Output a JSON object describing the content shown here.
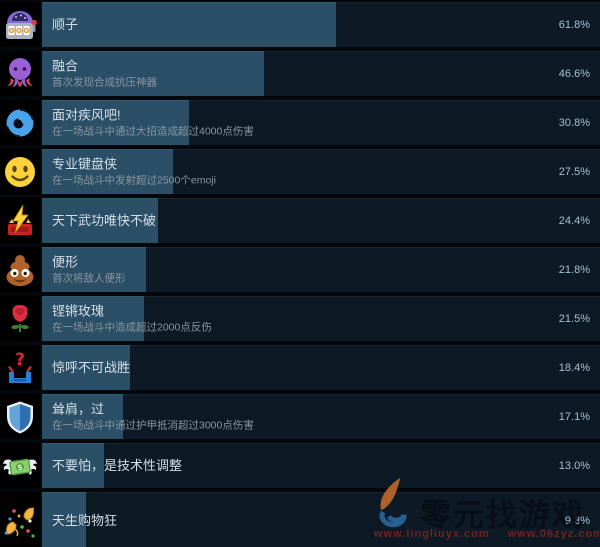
{
  "achievements": [
    {
      "title": "顺子",
      "description": "",
      "percent": 61.8,
      "percent_label": "61.8%",
      "icon": "slot-machine"
    },
    {
      "title": "融合",
      "description": "首次发现合成抗压神器",
      "percent": 46.6,
      "percent_label": "46.6%",
      "icon": "octopus"
    },
    {
      "title": "面对疾风吧!",
      "description": "在一场战斗中通过大招造成超过4000点伤害",
      "percent": 30.8,
      "percent_label": "30.8%",
      "icon": "cyclone"
    },
    {
      "title": "专业键盘侠",
      "description": "在一场战斗中发射超过2500个emoji",
      "percent": 27.5,
      "percent_label": "27.5%",
      "icon": "smiley"
    },
    {
      "title": "天下武功唯快不破",
      "description": "",
      "percent": 24.4,
      "percent_label": "24.4%",
      "icon": "zap"
    },
    {
      "title": "便形",
      "description": "首次将敌人便形",
      "percent": 21.8,
      "percent_label": "21.8%",
      "icon": "poop"
    },
    {
      "title": "铿锵玫瑰",
      "description": "在一场战斗中造成超过2000点反伤",
      "percent": 21.5,
      "percent_label": "21.5%",
      "icon": "rose"
    },
    {
      "title": "惊呼不可战胜",
      "description": "",
      "percent": 18.4,
      "percent_label": "18.4%",
      "icon": "question-box"
    },
    {
      "title": "耸肩，过",
      "description": "在一场战斗中通过护甲抵消超过3000点伤害",
      "percent": 17.1,
      "percent_label": "17.1%",
      "icon": "shield"
    },
    {
      "title": "不要怕，是技术性调整",
      "description": "",
      "percent": 13.0,
      "percent_label": "13.0%",
      "icon": "money-wings"
    },
    {
      "title": "天生购物狂",
      "description": "",
      "percent": 9.3,
      "percent_label": "9.3%",
      "icon": "confetti-ball"
    }
  ],
  "bar": {
    "fill_scale": 0.853
  },
  "colors": {
    "bar_fill": "#2b4f66",
    "row_bg": "#0d1a25",
    "title_text": "#d6dfe7",
    "desc_text": "#8a95a1",
    "percent_text": "#a7c0d2"
  },
  "watermark": {
    "site_name": "零元找游戏",
    "urls": [
      "www.lingliuyx.com",
      "www.06zyz.com"
    ]
  }
}
